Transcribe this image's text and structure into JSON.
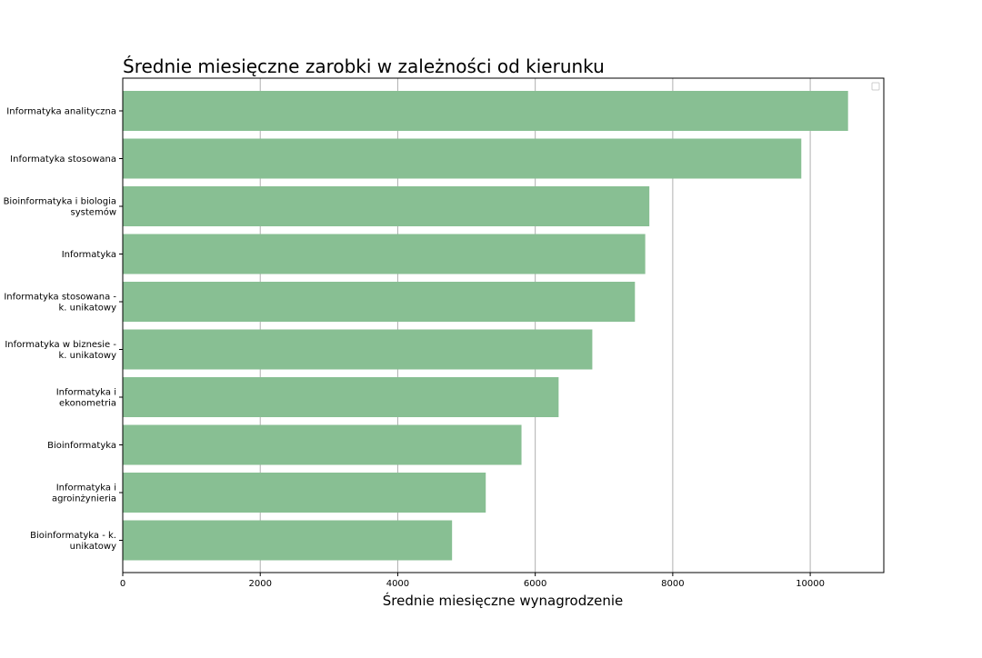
{
  "chart_data": {
    "type": "bar",
    "orientation": "horizontal",
    "title": "Średnie miesięczne zarobki w zależności od kierunku",
    "xlabel": "Średnie miesięczne wynagrodzenie",
    "ylabel": "",
    "xlim": [
      0,
      11070
    ],
    "xticks": [
      0,
      2000,
      4000,
      6000,
      8000,
      10000
    ],
    "grid": "vertical",
    "legend": "top-right, empty",
    "bar_color": "#88bf93",
    "categories": [
      [
        "Informatyka analityczna"
      ],
      [
        "Informatyka stosowana"
      ],
      [
        "Bioinformatyka i biologia",
        "systemów"
      ],
      [
        "Informatyka"
      ],
      [
        "Informatyka stosowana -",
        "k. unikatowy"
      ],
      [
        "Informatyka w biznesie -",
        "k. unikatowy"
      ],
      [
        "Informatyka i",
        "ekonometria"
      ],
      [
        "Bioinformatyka"
      ],
      [
        "Informatyka i",
        "agroinżynieria"
      ],
      [
        "Bioinformatyka - k.",
        "unikatowy"
      ]
    ],
    "values": [
      10550,
      9870,
      7660,
      7600,
      7450,
      6830,
      6340,
      5800,
      5280,
      4790
    ]
  }
}
